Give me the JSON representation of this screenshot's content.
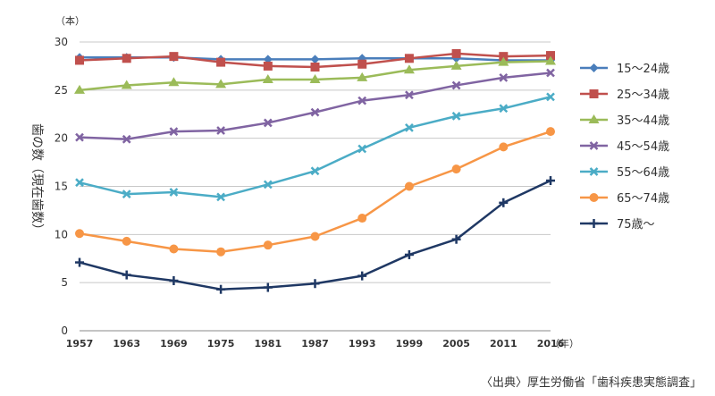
{
  "chart_data": {
    "type": "line",
    "title": "",
    "xlabel": "",
    "ylabel": "歯の数（現在歯数）",
    "y_unit": "（本）",
    "x_unit": "（年）",
    "ylim": [
      0,
      30
    ],
    "yticks": [
      0,
      5,
      10,
      15,
      20,
      25,
      30
    ],
    "grid": true,
    "legend": "right",
    "categories": [
      "1957",
      "1963",
      "1969",
      "1975",
      "1981",
      "1987",
      "1993",
      "1999",
      "2005",
      "2011",
      "2016"
    ],
    "series": [
      {
        "name": "15～24歳",
        "color": "#4a7ebb",
        "marker": "diamond",
        "values": [
          28.4,
          28.4,
          28.4,
          28.2,
          28.2,
          28.2,
          28.3,
          28.3,
          28.3,
          28.1,
          28.1
        ]
      },
      {
        "name": "25～34歳",
        "color": "#c0504d",
        "marker": "square",
        "values": [
          28.1,
          28.3,
          28.5,
          27.9,
          27.5,
          27.4,
          27.7,
          28.3,
          28.8,
          28.5,
          28.6
        ]
      },
      {
        "name": "35～44歳",
        "color": "#9bbb59",
        "marker": "triangle",
        "values": [
          25.0,
          25.5,
          25.8,
          25.6,
          26.1,
          26.1,
          26.3,
          27.1,
          27.5,
          27.9,
          28.0
        ]
      },
      {
        "name": "45～54歳",
        "color": "#8064a2",
        "marker": "x",
        "values": [
          20.1,
          19.9,
          20.7,
          20.8,
          21.6,
          22.7,
          23.9,
          24.5,
          25.5,
          26.3,
          26.8
        ]
      },
      {
        "name": "55～64歳",
        "color": "#4bacc6",
        "marker": "x",
        "values": [
          15.4,
          14.2,
          14.4,
          13.9,
          15.2,
          16.6,
          18.9,
          21.1,
          22.3,
          23.1,
          24.3
        ]
      },
      {
        "name": "65～74歳",
        "color": "#f79646",
        "marker": "circle",
        "values": [
          10.1,
          9.3,
          8.5,
          8.2,
          8.9,
          9.8,
          11.7,
          15.0,
          16.8,
          19.1,
          20.7
        ]
      },
      {
        "name": "75歳～",
        "color": "#1f3864",
        "marker": "plus",
        "values": [
          7.1,
          5.8,
          5.2,
          4.3,
          4.5,
          4.9,
          5.7,
          7.9,
          9.5,
          13.3,
          15.6
        ]
      }
    ]
  },
  "source": "〈出典〉厚生労働省「歯科疾患実態調査」"
}
